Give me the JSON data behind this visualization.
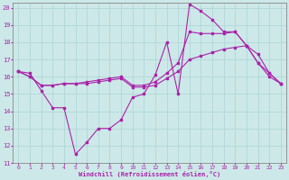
{
  "xlabel": "Windchill (Refroidissement éolien,°C)",
  "xlim": [
    -0.5,
    23.5
  ],
  "ylim": [
    11,
    20.3
  ],
  "yticks": [
    11,
    12,
    13,
    14,
    15,
    16,
    17,
    18,
    19,
    20
  ],
  "xticks": [
    0,
    1,
    2,
    3,
    4,
    5,
    6,
    7,
    8,
    9,
    10,
    11,
    12,
    13,
    14,
    15,
    16,
    17,
    18,
    19,
    20,
    21,
    22,
    23
  ],
  "background_color": "#cde8e8",
  "line_color": "#aa22aa",
  "line1_x": [
    0,
    1,
    2,
    3,
    4,
    5,
    6,
    7,
    8,
    9,
    10,
    11,
    12,
    13,
    14,
    15,
    16,
    17,
    18,
    19,
    20,
    21,
    22,
    23
  ],
  "line1_y": [
    16.3,
    16.2,
    15.2,
    14.2,
    14.2,
    11.5,
    12.2,
    13.0,
    13.0,
    13.5,
    14.8,
    15.0,
    16.1,
    18.0,
    15.0,
    20.2,
    19.8,
    19.3,
    18.6,
    18.6,
    17.8,
    16.8,
    16.0,
    15.6
  ],
  "line2_x": [
    0,
    1,
    2,
    3,
    4,
    5,
    6,
    7,
    8,
    9,
    10,
    11,
    12,
    13,
    14,
    15,
    16,
    17,
    18,
    19,
    20,
    21,
    22,
    23
  ],
  "line2_y": [
    16.3,
    16.0,
    15.5,
    15.5,
    15.6,
    15.6,
    15.6,
    15.7,
    15.8,
    15.9,
    15.4,
    15.4,
    15.5,
    15.9,
    16.3,
    17.0,
    17.2,
    17.4,
    17.6,
    17.7,
    17.8,
    17.3,
    16.2,
    15.6
  ],
  "line3_x": [
    0,
    1,
    2,
    3,
    4,
    5,
    6,
    7,
    8,
    9,
    10,
    11,
    12,
    13,
    14,
    15,
    16,
    17,
    18,
    19,
    20,
    21,
    22,
    23
  ],
  "line3_y": [
    16.3,
    16.0,
    15.5,
    15.5,
    15.6,
    15.6,
    15.7,
    15.8,
    15.9,
    16.0,
    15.5,
    15.5,
    15.7,
    16.2,
    16.8,
    18.6,
    18.5,
    18.5,
    18.5,
    18.6,
    17.8,
    16.8,
    16.2,
    15.6
  ]
}
